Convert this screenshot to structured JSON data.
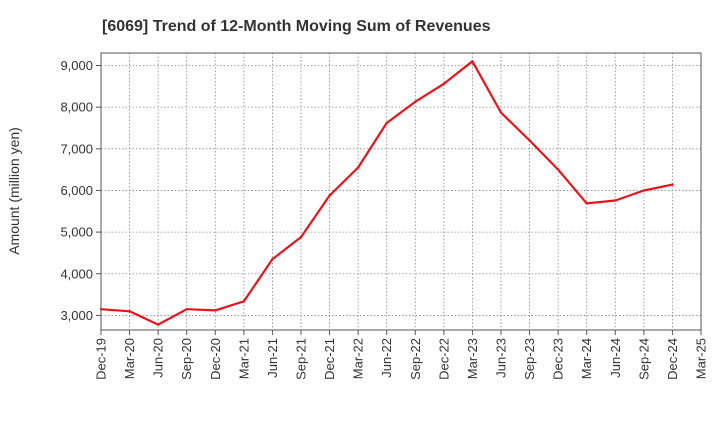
{
  "chart_data": {
    "type": "line",
    "title": "[6069]  Trend of 12-Month Moving Sum of Revenues",
    "ylabel": "Amount (million yen)",
    "xlabel": "",
    "categories": [
      "Dec-19",
      "Mar-20",
      "Jun-20",
      "Sep-20",
      "Dec-20",
      "Mar-21",
      "Jun-21",
      "Sep-21",
      "Dec-21",
      "Mar-22",
      "Jun-22",
      "Sep-22",
      "Dec-22",
      "Mar-23",
      "Jun-23",
      "Sep-23",
      "Dec-23",
      "Mar-24",
      "Jun-24",
      "Sep-24",
      "Dec-24",
      "Mar-25"
    ],
    "series": [
      {
        "values": [
          3150,
          3100,
          2780,
          3150,
          3120,
          3340,
          4350,
          4880,
          5880,
          6550,
          7620,
          8130,
          8560,
          9100,
          7870,
          7200,
          6500,
          5690,
          5760,
          6000,
          6140,
          null
        ],
        "color": "#e8141c"
      }
    ],
    "ylim": [
      2650,
      9300
    ],
    "yticks": [
      3000,
      4000,
      5000,
      6000,
      7000,
      8000,
      9000
    ],
    "ytick_labels": [
      "3,000",
      "4,000",
      "5,000",
      "6,000",
      "7,000",
      "8,000",
      "9,000"
    ],
    "grid": true
  }
}
